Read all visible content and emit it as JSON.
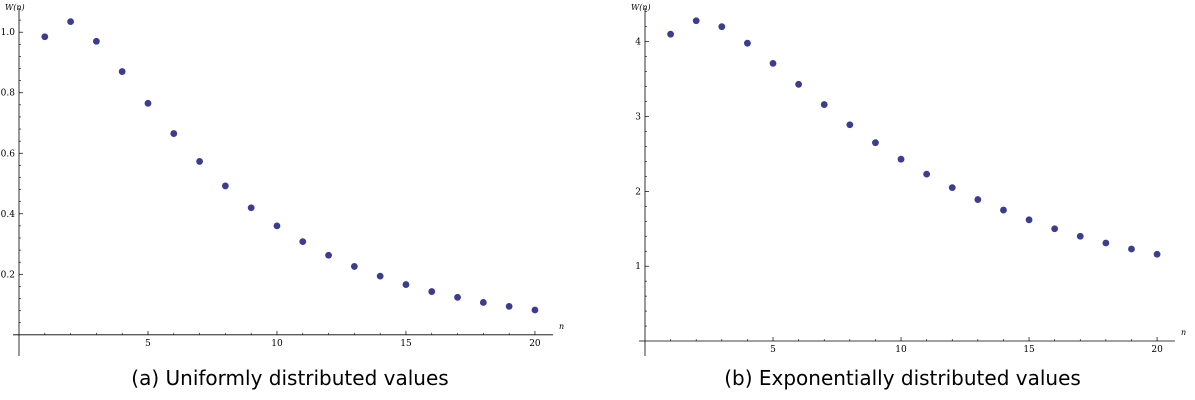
{
  "chart_data": [
    {
      "type": "scatter",
      "caption": "(a) Uniformly distributed values",
      "xlabel": "n",
      "ylabel": "W(n)",
      "xlim": [
        0,
        20.7
      ],
      "ylim": [
        -0.07,
        1.08
      ],
      "xticks": [
        5,
        10,
        15,
        20
      ],
      "yticks": [
        0.2,
        0.4,
        0.6,
        0.8,
        1.0
      ],
      "ytick_labels": [
        "0.2",
        "0.4",
        "0.6",
        "0.8",
        "1.0"
      ],
      "grid": false,
      "marker_color": "#3d3d8f",
      "x": [
        1,
        2,
        3,
        4,
        5,
        6,
        7,
        8,
        9,
        10,
        11,
        12,
        13,
        14,
        15,
        16,
        17,
        18,
        19,
        20
      ],
      "y": [
        0.985,
        1.035,
        0.97,
        0.87,
        0.765,
        0.665,
        0.573,
        0.492,
        0.42,
        0.36,
        0.308,
        0.263,
        0.226,
        0.194,
        0.166,
        0.143,
        0.124,
        0.107,
        0.094,
        0.082
      ]
    },
    {
      "type": "scatter",
      "caption": "(b) Exponentially distributed values",
      "xlabel": "n",
      "ylabel": "W(n)",
      "xlim": [
        0,
        20.7
      ],
      "ylim": [
        -0.2,
        4.45
      ],
      "xticks": [
        5,
        10,
        15,
        20
      ],
      "yticks": [
        1,
        2,
        3,
        4
      ],
      "ytick_labels": [
        "1",
        "2",
        "3",
        "4"
      ],
      "grid": false,
      "marker_color": "#3d3d8f",
      "x": [
        1,
        2,
        3,
        4,
        5,
        6,
        7,
        8,
        9,
        10,
        11,
        12,
        13,
        14,
        15,
        16,
        17,
        18,
        19,
        20
      ],
      "y": [
        4.1,
        4.28,
        4.2,
        3.98,
        3.71,
        3.43,
        3.16,
        2.89,
        2.65,
        2.43,
        2.23,
        2.05,
        1.89,
        1.75,
        1.62,
        1.5,
        1.4,
        1.31,
        1.23,
        1.16
      ]
    }
  ]
}
